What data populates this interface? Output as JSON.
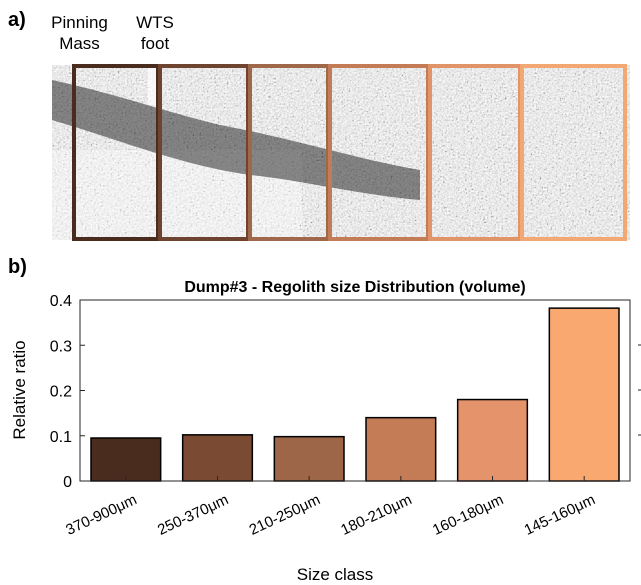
{
  "panel_a": {
    "label": "a)",
    "pinning_mass_label": "Pinning\nMass",
    "wts_foot_label": "WTS\nfoot",
    "section_colors": [
      "#4a2c1e",
      "#6e4330",
      "#a0684a",
      "#c47c56",
      "#e19468",
      "#f3a873"
    ]
  },
  "panel_b": {
    "label": "b)"
  },
  "chart_data": {
    "type": "bar",
    "title": "Dump#3 - Regolith size Distribution (volume)",
    "xlabel": "Size class",
    "ylabel": "Relative ratio",
    "categories": [
      "370-900μm",
      "250-370μm",
      "210-250μm",
      "180-210μm",
      "160-180μm",
      "145-160μm"
    ],
    "values": [
      0.095,
      0.102,
      0.098,
      0.14,
      0.18,
      0.382
    ],
    "colors": [
      "#4a2c1e",
      "#7a4a33",
      "#9e6648",
      "#c47c56",
      "#e5936a",
      "#f9a870"
    ],
    "ylim": [
      0,
      0.4
    ],
    "yticks": [
      0,
      0.1,
      0.2,
      0.3,
      0.4
    ],
    "ytick_labels": [
      "0",
      "0.1",
      "0.2",
      "0.3",
      "0.4"
    ],
    "grid": false,
    "legend": false
  }
}
